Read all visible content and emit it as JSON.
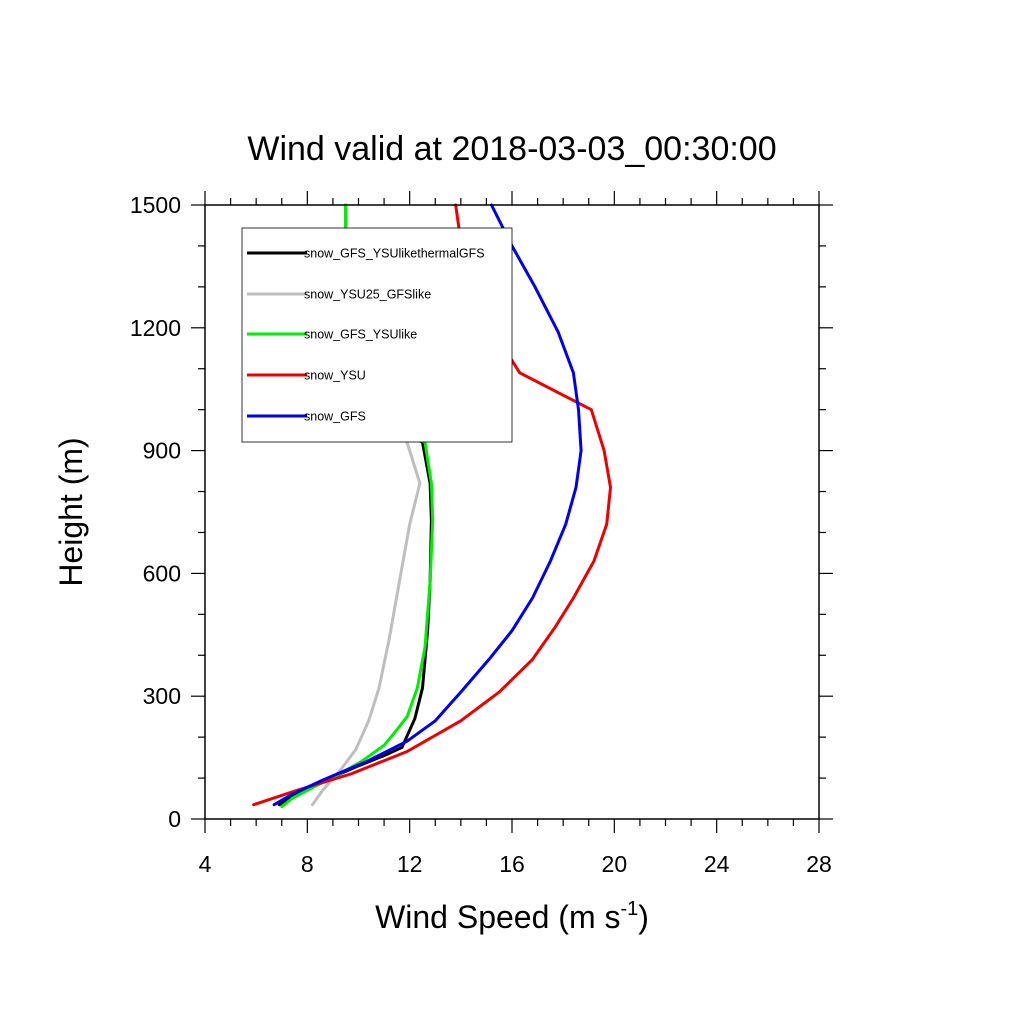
{
  "chart_data": {
    "type": "line",
    "title": "Wind valid at 2018-03-03_00:30:00",
    "xlabel_main": "Wind Speed (m s",
    "xlabel_sup": "-1",
    "xlabel_close": ")",
    "ylabel": "Height (m)",
    "xlim": [
      4,
      28
    ],
    "ylim": [
      0,
      1500
    ],
    "xticks": [
      "4",
      "8",
      "12",
      "16",
      "20",
      "24",
      "28"
    ],
    "yticks": [
      "0",
      "300",
      "600",
      "900",
      "1200",
      "1500"
    ],
    "legend_placement": "top-left",
    "series": [
      {
        "name": "snow_GFS_YSUlikethermalGFS",
        "color": "#000000",
        "width": 3,
        "points": [
          [
            6.9,
            35
          ],
          [
            7.3,
            50
          ],
          [
            8.1,
            75
          ],
          [
            8.9,
            100
          ],
          [
            10.0,
            130
          ],
          [
            11.0,
            155
          ],
          [
            11.7,
            175
          ],
          [
            12.2,
            245
          ],
          [
            12.5,
            320
          ],
          [
            12.7,
            460
          ],
          [
            12.8,
            580
          ],
          [
            12.85,
            730
          ],
          [
            12.8,
            820
          ],
          [
            12.5,
            920
          ],
          [
            10.1,
            1010
          ],
          [
            9.7,
            1055
          ],
          [
            9.55,
            1110
          ],
          [
            9.5,
            1300
          ],
          [
            9.5,
            1500
          ]
        ]
      },
      {
        "name": "snow_YSU25_GFSlike",
        "color": "#bebebe",
        "width": 3,
        "points": [
          [
            8.2,
            35
          ],
          [
            8.6,
            70
          ],
          [
            9.3,
            120
          ],
          [
            9.9,
            170
          ],
          [
            10.4,
            240
          ],
          [
            10.8,
            320
          ],
          [
            11.2,
            440
          ],
          [
            11.6,
            580
          ],
          [
            12.0,
            720
          ],
          [
            12.4,
            820
          ],
          [
            11.9,
            920
          ],
          [
            10.5,
            990
          ],
          [
            9.8,
            1040
          ],
          [
            9.6,
            1110
          ],
          [
            9.5,
            1300
          ],
          [
            9.5,
            1500
          ]
        ]
      },
      {
        "name": "snow_GFS_YSUlike",
        "color": "#00ee00",
        "width": 3,
        "points": [
          [
            7.0,
            30
          ],
          [
            7.4,
            50
          ],
          [
            8.3,
            80
          ],
          [
            9.1,
            105
          ],
          [
            10.1,
            140
          ],
          [
            11.0,
            180
          ],
          [
            11.4,
            210
          ],
          [
            11.9,
            250
          ],
          [
            12.3,
            320
          ],
          [
            12.6,
            420
          ],
          [
            12.8,
            580
          ],
          [
            12.9,
            730
          ],
          [
            12.85,
            820
          ],
          [
            12.6,
            920
          ],
          [
            10.1,
            1010
          ],
          [
            9.7,
            1055
          ],
          [
            9.55,
            1110
          ],
          [
            9.5,
            1300
          ],
          [
            9.5,
            1500
          ]
        ]
      },
      {
        "name": "snow_YSU",
        "color": "#ee0000",
        "width": 3,
        "points": [
          [
            5.9,
            35
          ],
          [
            7.6,
            70
          ],
          [
            9.7,
            110
          ],
          [
            11.9,
            165
          ],
          [
            14.0,
            240
          ],
          [
            15.5,
            310
          ],
          [
            16.8,
            390
          ],
          [
            17.7,
            470
          ],
          [
            18.4,
            540
          ],
          [
            19.2,
            630
          ],
          [
            19.7,
            720
          ],
          [
            19.85,
            810
          ],
          [
            19.6,
            900
          ],
          [
            19.1,
            1000
          ],
          [
            16.3,
            1090
          ],
          [
            15.2,
            1200
          ],
          [
            14.4,
            1300
          ],
          [
            14.0,
            1410
          ],
          [
            13.8,
            1500
          ]
        ]
      },
      {
        "name": "snow_GFS",
        "color": "#0000ee",
        "width": 3,
        "points": [
          [
            6.7,
            35
          ],
          [
            7.4,
            60
          ],
          [
            8.6,
            95
          ],
          [
            10.3,
            140
          ],
          [
            11.9,
            190
          ],
          [
            13.0,
            240
          ],
          [
            14.0,
            310
          ],
          [
            15.1,
            390
          ],
          [
            16.0,
            460
          ],
          [
            16.8,
            540
          ],
          [
            17.5,
            630
          ],
          [
            18.1,
            720
          ],
          [
            18.5,
            810
          ],
          [
            18.7,
            900
          ],
          [
            18.6,
            1000
          ],
          [
            18.4,
            1090
          ],
          [
            17.8,
            1190
          ],
          [
            16.9,
            1300
          ],
          [
            16.0,
            1400
          ],
          [
            15.2,
            1500
          ]
        ]
      }
    ]
  }
}
